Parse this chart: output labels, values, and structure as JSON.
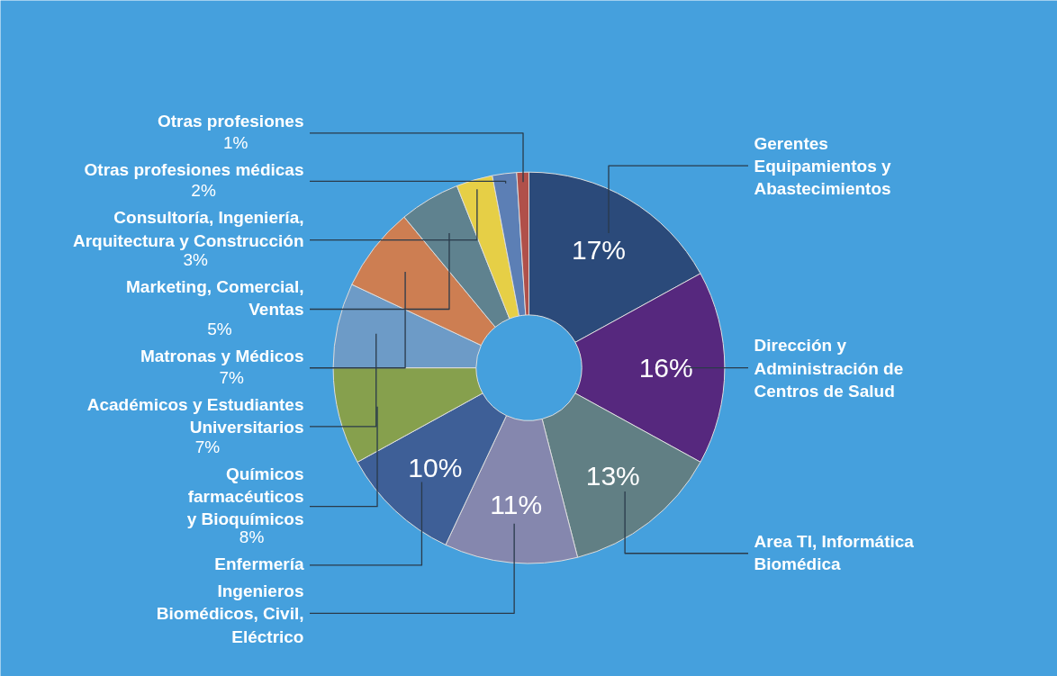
{
  "chart_data": {
    "type": "donut",
    "categories": [
      "Gerentes\nEquipamientos y\nAbastecimientos",
      "Dirección y\nAdministración de\nCentros de Salud",
      "Area TI, Informática\nBiomédica",
      "Ingenieros\nBiomédicos, Civil,\nEléctrico",
      "Enfermería",
      "Químicos\nfarmacéuticos\ny Bioquímicos",
      "Académicos y Estudiantes\nUniversitarios",
      "Matronas y Médicos",
      "Marketing, Comercial,\nVentas",
      "Consultoría, Ingeniería,\nArquitectura y Construcción",
      "Otras profesiones médicas",
      "Otras profesiones"
    ],
    "values": [
      17,
      16,
      13,
      11,
      10,
      8,
      7,
      7,
      5,
      3,
      2,
      1
    ],
    "colors": [
      "#2b4a7a",
      "#56287e",
      "#617f84",
      "#8587ae",
      "#3e5f97",
      "#86a04d",
      "#6d9bc7",
      "#cd7e52",
      "#5f828f",
      "#e6cf46",
      "#5c7fb5",
      "#b0504a"
    ],
    "value_labels": [
      "17%",
      "16%",
      "13%",
      "11%",
      "10%",
      "8%",
      "7%",
      "7%",
      "5%",
      "3%",
      "2%",
      "1%"
    ]
  }
}
